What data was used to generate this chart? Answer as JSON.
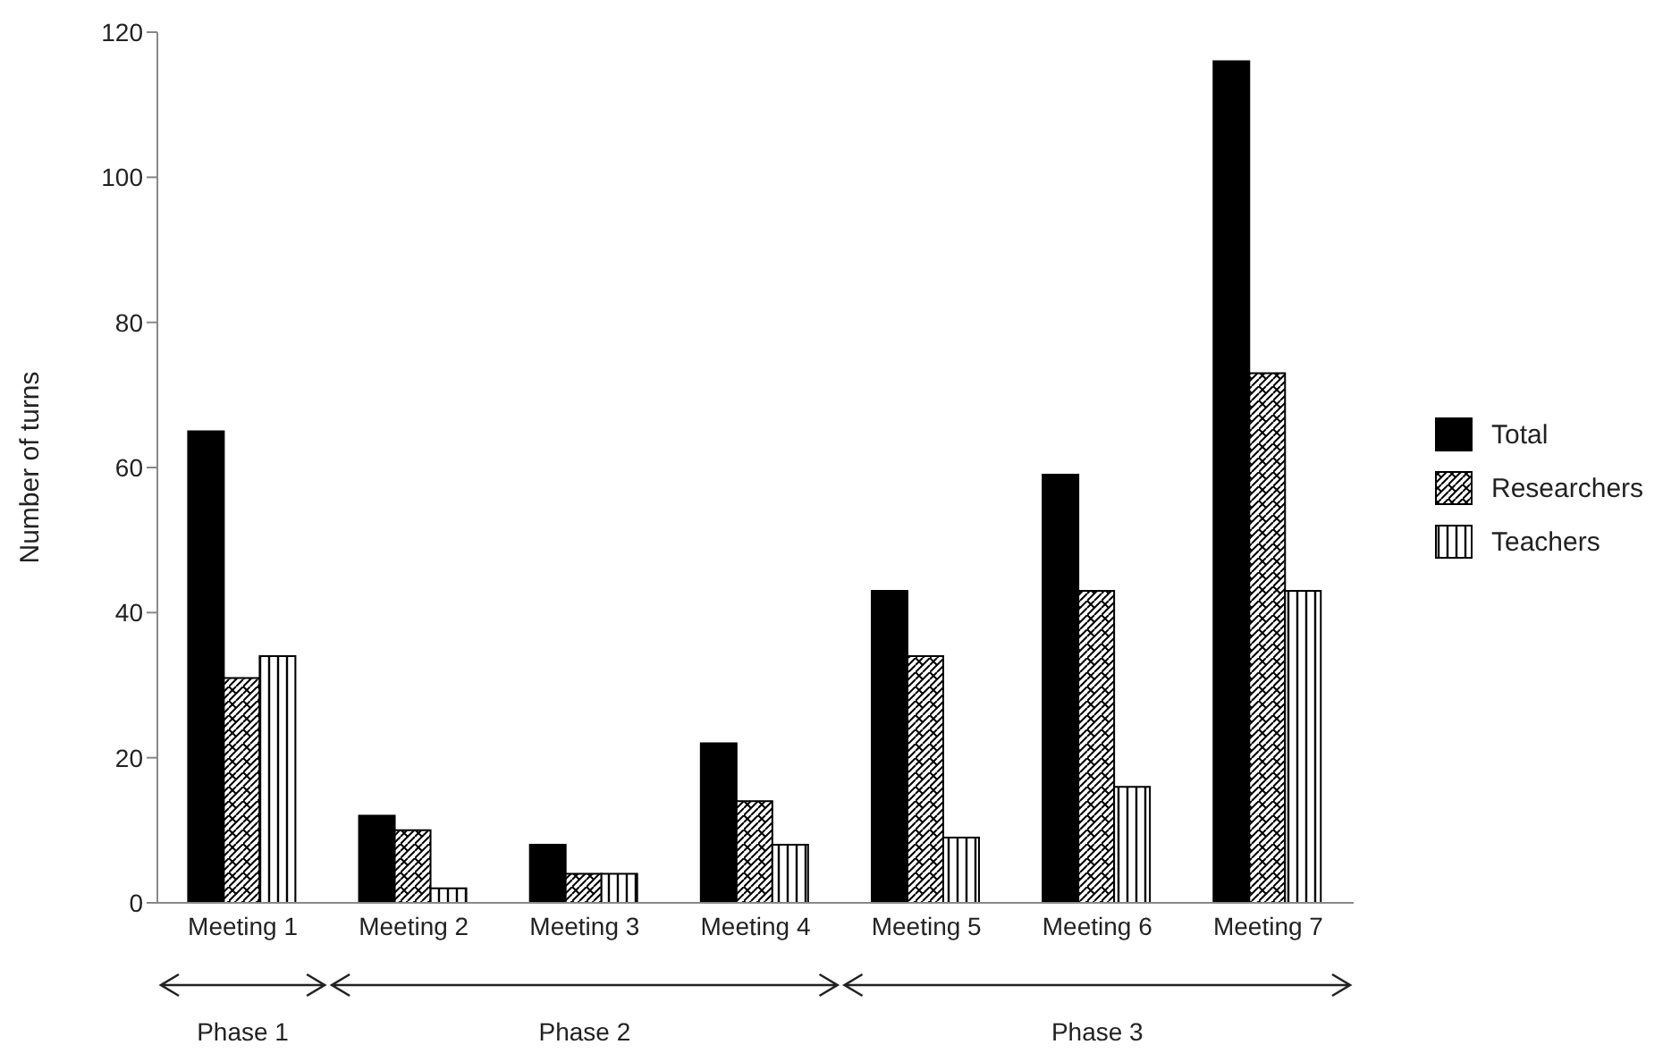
{
  "chart_data": {
    "type": "bar",
    "ylabel": "Number of turns",
    "categories": [
      "Meeting 1",
      "Meeting 2",
      "Meeting 3",
      "Meeting 4",
      "Meeting 5",
      "Meeting 6",
      "Meeting 7"
    ],
    "series": [
      {
        "name": "Total",
        "color": "#000000",
        "values": [
          65,
          12,
          8,
          22,
          43,
          59,
          116
        ]
      },
      {
        "name": "Researchers",
        "color": "#000000",
        "values": [
          31,
          10,
          4,
          14,
          34,
          43,
          73
        ]
      },
      {
        "name": "Teachers",
        "color": "#000000",
        "values": [
          34,
          2,
          4,
          8,
          9,
          16,
          43
        ]
      }
    ],
    "ylim": [
      0,
      120
    ],
    "yticks": [
      0,
      20,
      40,
      60,
      80,
      100,
      120
    ],
    "grid": false,
    "legend": "right",
    "annotations": [
      "Phase 1",
      "Phase 2",
      "Phase 3"
    ]
  }
}
